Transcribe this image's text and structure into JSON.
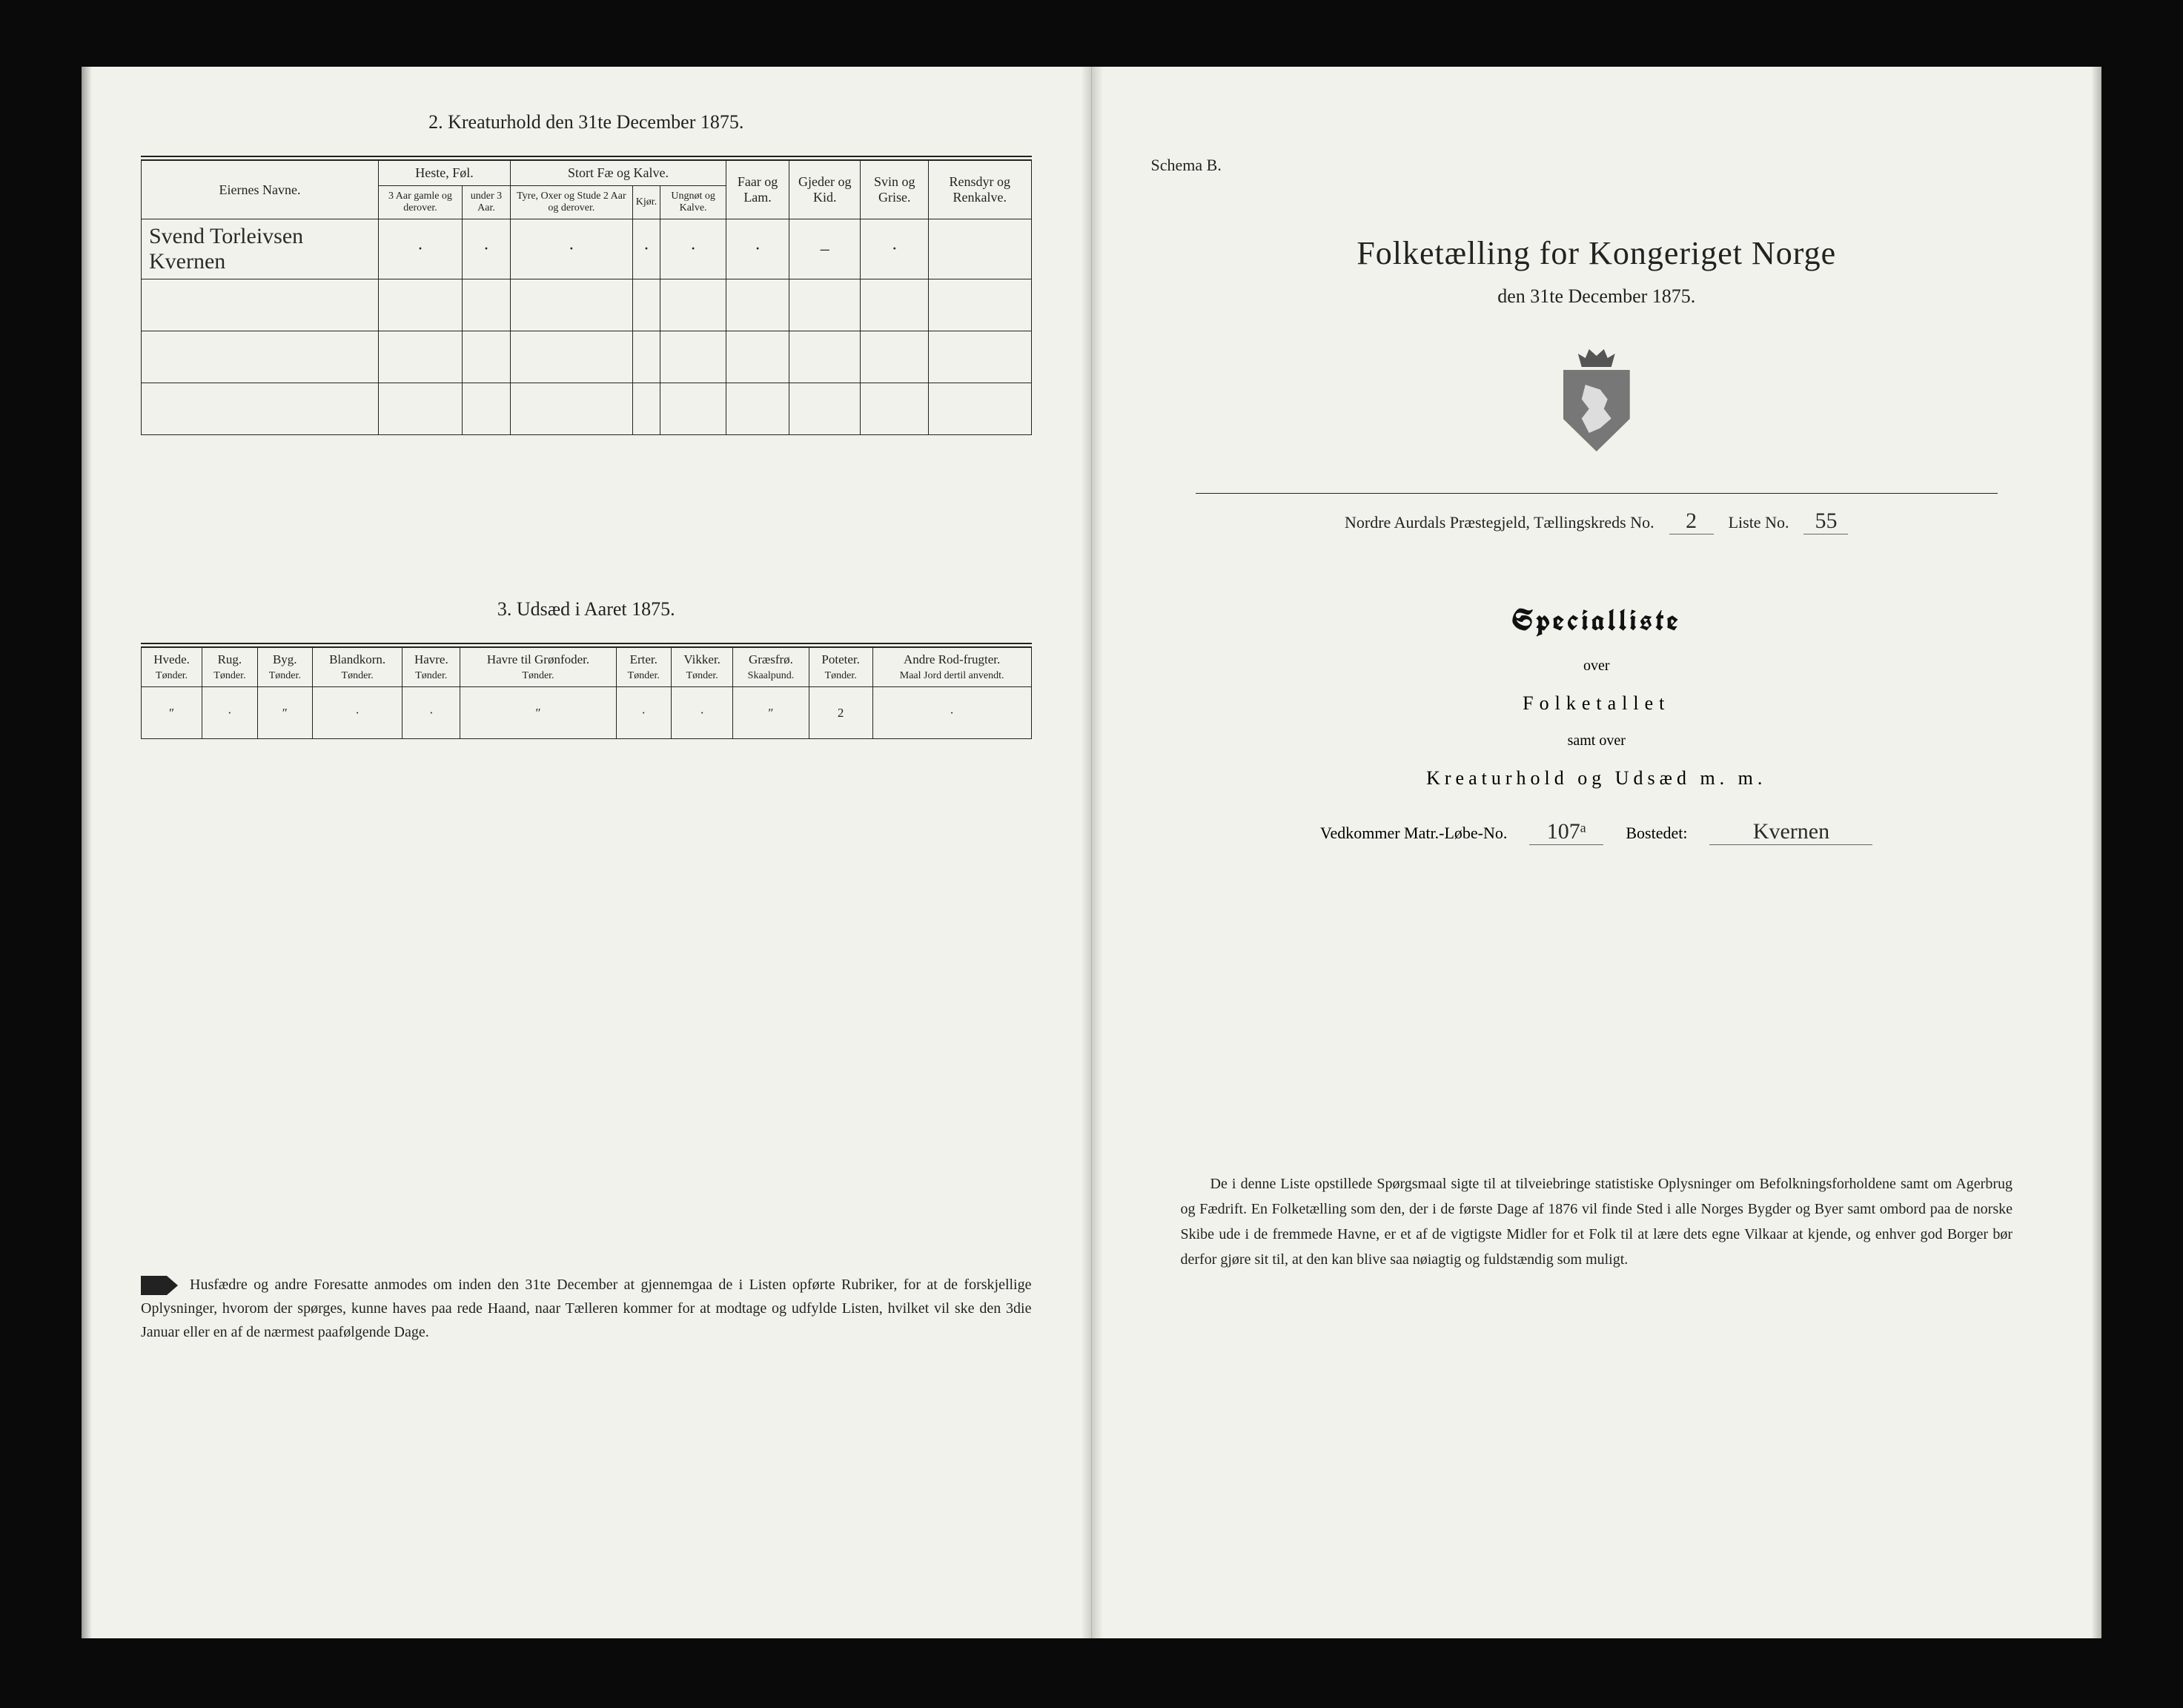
{
  "left": {
    "section2_title": "2.  Kreaturhold den 31te December 1875.",
    "table2": {
      "owners_header": "Eiernes Navne.",
      "group_heste": "Heste, Føl.",
      "group_stort": "Stort Fæ og Kalve.",
      "heste_a": "3 Aar gamle og derover.",
      "heste_b": "under 3 Aar.",
      "stort_a": "Tyre, Oxer og Stude 2 Aar og derover.",
      "stort_b": "Kjør.",
      "stort_c": "Ungnøt og Kalve.",
      "faar": "Faar og Lam.",
      "gjeder": "Gjeder og Kid.",
      "svin": "Svin og Grise.",
      "rensdyr": "Rensdyr og Renkalve.",
      "row1_owner": "Svend Torleivsen Kvernen",
      "row1": [
        "·",
        "·",
        "·",
        "·",
        "·",
        "·",
        "–",
        "·",
        ""
      ]
    },
    "section3_title": "3.  Udsæd i Aaret 1875.",
    "table3": {
      "headers": [
        {
          "h": "Hvede.",
          "s": "Tønder."
        },
        {
          "h": "Rug.",
          "s": "Tønder."
        },
        {
          "h": "Byg.",
          "s": "Tønder."
        },
        {
          "h": "Blandkorn.",
          "s": "Tønder."
        },
        {
          "h": "Havre.",
          "s": "Tønder."
        },
        {
          "h": "Havre til Grønfoder.",
          "s": "Tønder."
        },
        {
          "h": "Erter.",
          "s": "Tønder."
        },
        {
          "h": "Vikker.",
          "s": "Tønder."
        },
        {
          "h": "Græsfrø.",
          "s": "Skaalpund."
        },
        {
          "h": "Poteter.",
          "s": "Tønder."
        },
        {
          "h": "Andre Rod-frugter.",
          "s": "Maal Jord dertil anvendt."
        }
      ],
      "row": [
        "″",
        "·",
        "″",
        "·",
        "·",
        "″",
        "·",
        "·",
        "″",
        "2",
        "·"
      ]
    },
    "footnote": "Husfædre og andre Foresatte anmodes om inden den 31te December at gjennemgaa de i Listen opførte Rubriker, for at de forskjellige Oplysninger, hvorom der spørges, kunne haves paa rede Haand, naar Tælleren kommer for at modtage og udfylde Listen, hvilket vil ske den 3die Januar eller en af de nærmest paafølgende Dage."
  },
  "right": {
    "schema": "Schema B.",
    "title_main": "Folketælling for Kongeriget Norge",
    "title_sub": "den 31te December 1875.",
    "district_label": "Nordre Aurdals Præstegjeld, Tællingskreds No.",
    "district_no": "2",
    "liste_label": "Liste No.",
    "liste_no": "55",
    "spec_title": "Specialliste",
    "over": "over",
    "folketallet": "Folketallet",
    "samt_over": "samt over",
    "kreatur": "Kreaturhold og Udsæd m. m.",
    "matr_label": "Vedkommer Matr.-Løbe-No.",
    "matr_no": "107ᵃ",
    "bosted_label": "Bostedet:",
    "bosted": "Kvernen",
    "footnote": "De i denne Liste opstillede Spørgsmaal sigte til at tilveiebringe statistiske Oplysninger om Befolkningsforholdene samt om Agerbrug og Fædrift.  En Folketælling som den, der i de første Dage af 1876 vil finde Sted i alle Norges Bygder og Byer samt ombord paa de norske Skibe ude i de fremmede Havne, er et af de vigtigste Midler for et Folk til at lære dets egne Vilkaar at kjende, og enhver god Borger bør derfor gjøre sit til, at den kan blive saa nøiagtig og fuldstændig som muligt."
  },
  "colors": {
    "paper": "#f2f2ec",
    "ink": "#222222",
    "frame": "#0a0a0a"
  }
}
